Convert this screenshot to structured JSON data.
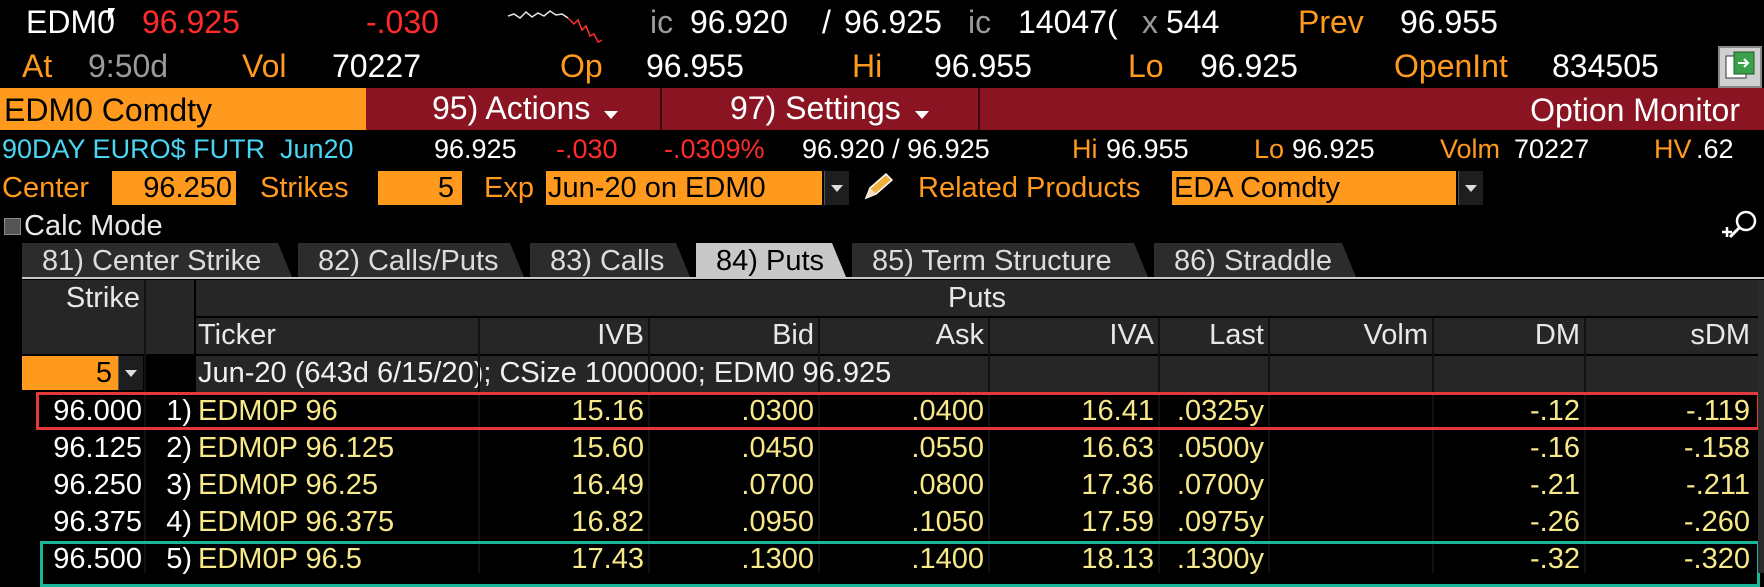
{
  "quote": {
    "ticker": "EDM0",
    "last": "96.925",
    "change": "-.030",
    "bid_label": "ic",
    "bid": "96.920",
    "sep": "/",
    "ask": "96.925",
    "size_label": "ic",
    "bid_size": "14047(",
    "x_label": "x",
    "ask_size": "544",
    "prev_label": "Prev",
    "prev": "96.955",
    "at_label": "At",
    "time": "9:50d",
    "vol_label": "Vol",
    "vol": "70227",
    "op_label": "Op",
    "op": "96.955",
    "hi_label": "Hi",
    "hi": "96.955",
    "lo_label": "Lo",
    "lo": "96.925",
    "oi_label": "OpenInt",
    "oi": "834505"
  },
  "toolbar": {
    "security": "EDM0 Comdty",
    "actions": "95) Actions",
    "settings": "97) Settings",
    "title": "Option Monitor"
  },
  "info": {
    "desc": "90DAY EURO$ FUTR",
    "month": "Jun20",
    "last": "96.925",
    "change": "-.030",
    "pct": "-.0309%",
    "bidask": "96.920 / 96.925",
    "hi_label": "Hi",
    "hi": "96.955",
    "lo_label": "Lo",
    "lo": "96.925",
    "volm_label": "Volm",
    "volm": "70227",
    "hv_label": "HV",
    "hv": ".62"
  },
  "controls": {
    "center_label": "Center",
    "center_value": "96.250",
    "strikes_label": "Strikes",
    "strikes_value": "5",
    "exp_label": "Exp",
    "exp_value": "Jun-20 on EDM0",
    "related_label": "Related Products",
    "related_value": "EDA Comdty",
    "calc_mode": "Calc Mode"
  },
  "tabs": [
    {
      "label": "81) Center Strike"
    },
    {
      "label": "82) Calls/Puts"
    },
    {
      "label": "83) Calls"
    },
    {
      "label": "84) Puts"
    },
    {
      "label": "85) Term Structure"
    },
    {
      "label": "86) Straddle"
    }
  ],
  "table": {
    "strike_header": "Strike",
    "group_header": "Puts",
    "columns": [
      "Ticker",
      "IVB",
      "Bid",
      "Ask",
      "IVA",
      "Last",
      "Volm",
      "DM",
      "sDM"
    ],
    "strikes_select": "5",
    "expiry_line": "Jun-20 (643d 6/15/20); CSize 1000000; EDM0 96.925",
    "rows": [
      {
        "strike": "96.000",
        "num": "1)",
        "ticker": "EDM0P 96",
        "ivb": "15.16",
        "bid": ".0300",
        "ask": ".0400",
        "iva": "16.41",
        "last": ".0325y",
        "volm": "",
        "dm": "-.12",
        "sdm": "-.119"
      },
      {
        "strike": "96.125",
        "num": "2)",
        "ticker": "EDM0P 96.125",
        "ivb": "15.60",
        "bid": ".0450",
        "ask": ".0550",
        "iva": "16.63",
        "last": ".0500y",
        "volm": "",
        "dm": "-.16",
        "sdm": "-.158"
      },
      {
        "strike": "96.250",
        "num": "3)",
        "ticker": "EDM0P 96.25",
        "ivb": "16.49",
        "bid": ".0700",
        "ask": ".0800",
        "iva": "17.36",
        "last": ".0700y",
        "volm": "",
        "dm": "-.21",
        "sdm": "-.211"
      },
      {
        "strike": "96.375",
        "num": "4)",
        "ticker": "EDM0P 96.375",
        "ivb": "16.82",
        "bid": ".0950",
        "ask": ".1050",
        "iva": "17.59",
        "last": ".0975y",
        "volm": "",
        "dm": "-.26",
        "sdm": "-.260"
      },
      {
        "strike": "96.500",
        "num": "5)",
        "ticker": "EDM0P 96.5",
        "ivb": "17.43",
        "bid": ".1300",
        "ask": ".1400",
        "iva": "18.13",
        "last": ".1300y",
        "volm": "",
        "dm": "-.32",
        "sdm": "-.320"
      }
    ]
  },
  "colors": {
    "accent_orange": "#ff9a1f",
    "toolbar_red": "#8b1422",
    "highlight_red": "#e23a3a",
    "highlight_green": "#1bb59a"
  }
}
